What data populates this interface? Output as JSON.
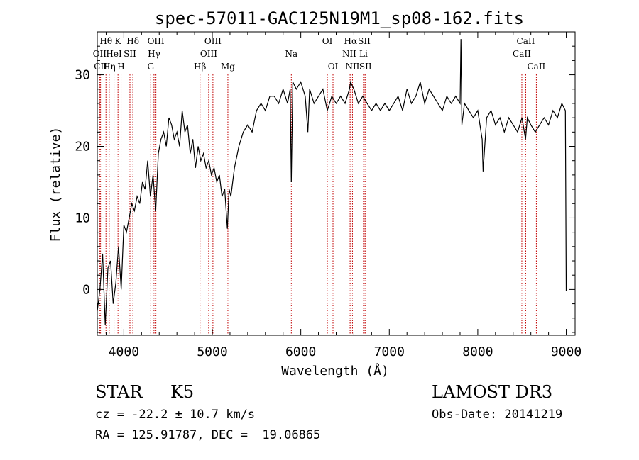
{
  "chart_data": {
    "type": "line",
    "title": "spec-57011-GAC125N19M1_sp08-162.fits",
    "xlabel": "Wavelength (Å)",
    "ylabel": "Flux (relative)",
    "xlim": [
      3700,
      9100
    ],
    "ylim": [
      -6.4,
      36
    ],
    "xticks": [
      4000,
      5000,
      6000,
      7000,
      8000,
      9000
    ],
    "yticks": [
      0,
      10,
      20,
      30
    ],
    "series": [
      {
        "name": "flux",
        "x": [
          3700,
          3730,
          3760,
          3790,
          3820,
          3850,
          3880,
          3910,
          3940,
          3970,
          4000,
          4030,
          4060,
          4090,
          4120,
          4150,
          4180,
          4210,
          4240,
          4270,
          4300,
          4330,
          4360,
          4390,
          4420,
          4450,
          4480,
          4510,
          4540,
          4570,
          4600,
          4630,
          4660,
          4690,
          4720,
          4750,
          4780,
          4810,
          4840,
          4870,
          4900,
          4930,
          4960,
          4990,
          5020,
          5050,
          5080,
          5110,
          5140,
          5170,
          5190,
          5210,
          5250,
          5300,
          5350,
          5400,
          5450,
          5500,
          5550,
          5600,
          5650,
          5700,
          5750,
          5800,
          5850,
          5880,
          5893,
          5910,
          5950,
          6000,
          6050,
          6080,
          6100,
          6150,
          6200,
          6250,
          6300,
          6350,
          6400,
          6450,
          6500,
          6550,
          6563,
          6600,
          6650,
          6700,
          6750,
          6800,
          6850,
          6900,
          6950,
          7000,
          7050,
          7100,
          7150,
          7200,
          7250,
          7300,
          7350,
          7400,
          7450,
          7500,
          7550,
          7600,
          7650,
          7700,
          7750,
          7800,
          7810,
          7820,
          7850,
          7900,
          7950,
          8000,
          8050,
          8060,
          8100,
          8150,
          8200,
          8250,
          8300,
          8350,
          8400,
          8450,
          8500,
          8540,
          8560,
          8600,
          8650,
          8700,
          8750,
          8800,
          8850,
          8900,
          8950,
          8990,
          9000
        ],
        "y": [
          -3,
          0,
          5,
          -5,
          3,
          4,
          -2,
          1,
          6,
          0,
          9,
          8,
          10,
          12,
          11,
          13,
          12,
          15,
          14,
          18,
          13,
          16,
          11,
          19,
          21,
          22,
          20,
          24,
          23,
          21,
          22,
          20,
          25,
          22,
          23,
          19,
          21,
          17,
          20,
          18,
          19,
          17,
          18,
          16,
          17,
          15,
          16,
          13,
          14,
          8.5,
          14,
          13,
          17,
          20,
          22,
          23,
          22,
          25,
          26,
          25,
          27,
          27,
          26,
          28,
          26,
          28,
          15,
          29,
          28,
          29,
          27,
          22,
          28,
          26,
          27,
          28,
          25,
          27,
          26,
          27,
          26,
          28,
          29,
          28,
          26,
          27,
          26,
          25,
          26,
          25,
          26,
          25,
          26,
          27,
          25,
          28,
          26,
          27,
          29,
          26,
          28,
          27,
          26,
          25,
          27,
          26,
          27,
          26,
          35,
          23,
          26,
          25,
          24,
          25,
          21,
          16.5,
          24,
          25,
          23,
          24,
          22,
          24,
          23,
          22,
          24,
          21,
          24,
          23,
          22,
          23,
          24,
          23,
          25,
          24,
          26,
          25,
          -0.2
        ]
      }
    ],
    "line_markers": [
      {
        "label": "Hθ",
        "x": 3798,
        "row": 1
      },
      {
        "label": "OII",
        "x": 3727,
        "row": 2
      },
      {
        "label": "Hη",
        "x": 3835,
        "row": 3
      },
      {
        "label": "CII",
        "x": 3737,
        "row": 3
      },
      {
        "label": "HeI",
        "x": 3889,
        "row": 2
      },
      {
        "label": "K",
        "x": 3934,
        "row": 1
      },
      {
        "label": "H",
        "x": 3969,
        "row": 3
      },
      {
        "label": "SII",
        "x": 4069,
        "row": 2
      },
      {
        "label": "Hδ",
        "x": 4102,
        "row": 1
      },
      {
        "label": "OIII",
        "x": 4363,
        "row": 1
      },
      {
        "label": "Hγ",
        "x": 4341,
        "row": 2
      },
      {
        "label": "G",
        "x": 4304,
        "row": 3
      },
      {
        "label": "Hβ",
        "x": 4861,
        "row": 3
      },
      {
        "label": "OIII",
        "x": 4959,
        "row": 2
      },
      {
        "label": "OIII",
        "x": 5007,
        "row": 1
      },
      {
        "label": "Mg",
        "x": 5176,
        "row": 3
      },
      {
        "label": "Na",
        "x": 5893,
        "row": 2
      },
      {
        "label": "OI",
        "x": 6300,
        "row": 1
      },
      {
        "label": "OI",
        "x": 6364,
        "row": 3
      },
      {
        "label": "Hα",
        "x": 6563,
        "row": 1
      },
      {
        "label": "NII",
        "x": 6548,
        "row": 2
      },
      {
        "label": "NII",
        "x": 6584,
        "row": 3
      },
      {
        "label": "SII",
        "x": 6717,
        "row": 1
      },
      {
        "label": "Li",
        "x": 6708,
        "row": 2
      },
      {
        "label": "SII",
        "x": 6731,
        "row": 3
      },
      {
        "label": "CaII",
        "x": 8498,
        "row": 2
      },
      {
        "label": "CaII",
        "x": 8542,
        "row": 1
      },
      {
        "label": "CaII",
        "x": 8662,
        "row": 3
      }
    ]
  },
  "info": {
    "object_class": "STAR",
    "subclass": "K5",
    "survey": "LAMOST DR3",
    "redshift": "cz = -22.2 ± 10.7 km/s",
    "obs_date": "Obs-Date: 20141219",
    "coords": "RA = 125.91787, DEC =  19.06865"
  },
  "colors": {
    "line": "#000000",
    "marker": "#c00000"
  }
}
